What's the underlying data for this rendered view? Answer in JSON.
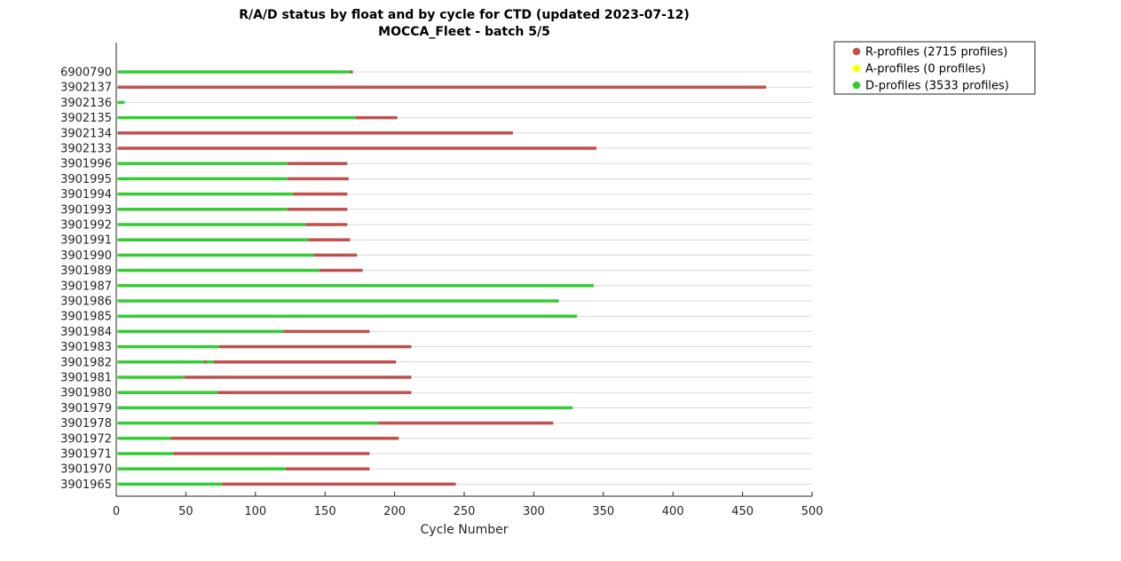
{
  "chart_data": {
    "type": "bar",
    "title": "R/A/D status by float and by cycle for CTD (updated 2023-07-12)",
    "subtitle": "MOCCA_Fleet - batch 5/5",
    "xlabel": "Cycle Number",
    "ylabel": "",
    "xlim": [
      0,
      500
    ],
    "xticks": [
      0,
      50,
      100,
      150,
      200,
      250,
      300,
      350,
      400,
      450,
      500
    ],
    "grid": "horizontal",
    "legend_position": "top-right-outside",
    "colors": {
      "R": "#c0504d",
      "A": "#ffff00",
      "D": "#33cc33",
      "grid": "#d9d9d9"
    },
    "legend": [
      {
        "key": "R",
        "label": "R-profiles (2715 profiles)"
      },
      {
        "key": "A",
        "label": "A-profiles (0 profiles)"
      },
      {
        "key": "D",
        "label": "D-profiles (3533 profiles)"
      }
    ],
    "floats": [
      {
        "name": "6900790",
        "segments": [
          {
            "s": "D",
            "from": 1,
            "to": 168
          },
          {
            "s": "R",
            "from": 168,
            "to": 170
          }
        ]
      },
      {
        "name": "3902137",
        "segments": [
          {
            "s": "R",
            "from": 1,
            "to": 467
          }
        ]
      },
      {
        "name": "3902136",
        "segments": [
          {
            "s": "D",
            "from": 1,
            "to": 6
          }
        ]
      },
      {
        "name": "3902135",
        "segments": [
          {
            "s": "D",
            "from": 1,
            "to": 172
          },
          {
            "s": "R",
            "from": 172,
            "to": 202
          }
        ]
      },
      {
        "name": "3902134",
        "segments": [
          {
            "s": "R",
            "from": 1,
            "to": 285
          }
        ]
      },
      {
        "name": "3902133",
        "segments": [
          {
            "s": "R",
            "from": 1,
            "to": 345
          }
        ]
      },
      {
        "name": "3901996",
        "segments": [
          {
            "s": "D",
            "from": 1,
            "to": 123
          },
          {
            "s": "R",
            "from": 123,
            "to": 166
          }
        ]
      },
      {
        "name": "3901995",
        "segments": [
          {
            "s": "D",
            "from": 1,
            "to": 123
          },
          {
            "s": "R",
            "from": 123,
            "to": 167
          }
        ]
      },
      {
        "name": "3901994",
        "segments": [
          {
            "s": "D",
            "from": 1,
            "to": 127
          },
          {
            "s": "R",
            "from": 127,
            "to": 166
          }
        ]
      },
      {
        "name": "3901993",
        "segments": [
          {
            "s": "D",
            "from": 1,
            "to": 123
          },
          {
            "s": "R",
            "from": 123,
            "to": 166
          }
        ]
      },
      {
        "name": "3901992",
        "segments": [
          {
            "s": "D",
            "from": 1,
            "to": 136
          },
          {
            "s": "R",
            "from": 136,
            "to": 166
          }
        ]
      },
      {
        "name": "3901991",
        "segments": [
          {
            "s": "D",
            "from": 1,
            "to": 138
          },
          {
            "s": "R",
            "from": 138,
            "to": 168
          }
        ]
      },
      {
        "name": "3901990",
        "segments": [
          {
            "s": "D",
            "from": 1,
            "to": 142
          },
          {
            "s": "R",
            "from": 142,
            "to": 173
          }
        ]
      },
      {
        "name": "3901989",
        "segments": [
          {
            "s": "D",
            "from": 1,
            "to": 146
          },
          {
            "s": "R",
            "from": 146,
            "to": 177
          }
        ]
      },
      {
        "name": "3901987",
        "segments": [
          {
            "s": "D",
            "from": 1,
            "to": 343
          }
        ]
      },
      {
        "name": "3901986",
        "segments": [
          {
            "s": "D",
            "from": 1,
            "to": 318
          }
        ]
      },
      {
        "name": "3901985",
        "segments": [
          {
            "s": "D",
            "from": 1,
            "to": 331
          }
        ]
      },
      {
        "name": "3901984",
        "segments": [
          {
            "s": "D",
            "from": 1,
            "to": 120
          },
          {
            "s": "R",
            "from": 120,
            "to": 182
          }
        ]
      },
      {
        "name": "3901983",
        "segments": [
          {
            "s": "D",
            "from": 1,
            "to": 74
          },
          {
            "s": "R",
            "from": 74,
            "to": 212
          }
        ]
      },
      {
        "name": "3901982",
        "segments": [
          {
            "s": "D",
            "from": 1,
            "to": 63
          },
          {
            "s": "R",
            "from": 63,
            "to": 65
          },
          {
            "s": "D",
            "from": 65,
            "to": 70
          },
          {
            "s": "R",
            "from": 70,
            "to": 201
          }
        ]
      },
      {
        "name": "3901981",
        "segments": [
          {
            "s": "D",
            "from": 1,
            "to": 49
          },
          {
            "s": "R",
            "from": 49,
            "to": 212
          }
        ]
      },
      {
        "name": "3901980",
        "segments": [
          {
            "s": "D",
            "from": 1,
            "to": 73
          },
          {
            "s": "R",
            "from": 73,
            "to": 212
          }
        ]
      },
      {
        "name": "3901979",
        "segments": [
          {
            "s": "D",
            "from": 1,
            "to": 328
          }
        ]
      },
      {
        "name": "3901978",
        "segments": [
          {
            "s": "D",
            "from": 1,
            "to": 188
          },
          {
            "s": "R",
            "from": 188,
            "to": 314
          }
        ]
      },
      {
        "name": "3901972",
        "segments": [
          {
            "s": "D",
            "from": 1,
            "to": 39
          },
          {
            "s": "R",
            "from": 39,
            "to": 203
          }
        ]
      },
      {
        "name": "3901971",
        "segments": [
          {
            "s": "D",
            "from": 1,
            "to": 41
          },
          {
            "s": "R",
            "from": 41,
            "to": 182
          }
        ]
      },
      {
        "name": "3901970",
        "segments": [
          {
            "s": "D",
            "from": 1,
            "to": 122
          },
          {
            "s": "R",
            "from": 122,
            "to": 182
          }
        ]
      },
      {
        "name": "3901965",
        "segments": [
          {
            "s": "D",
            "from": 1,
            "to": 76
          },
          {
            "s": "R",
            "from": 76,
            "to": 244
          }
        ]
      }
    ]
  }
}
